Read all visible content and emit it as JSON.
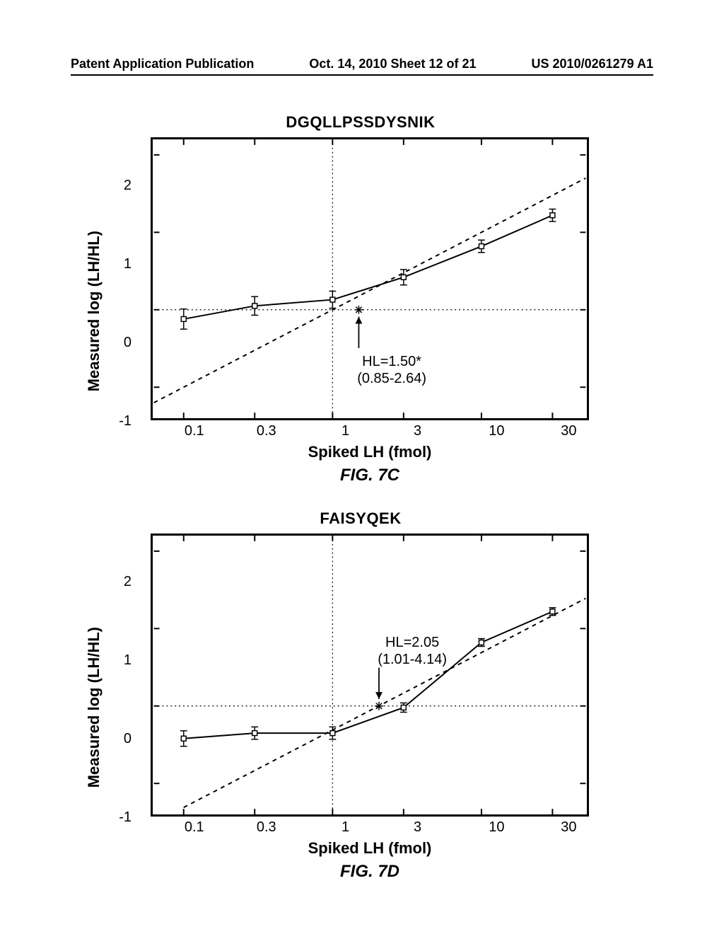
{
  "header": {
    "left": "Patent Application Publication",
    "center": "Oct. 14, 2010  Sheet 12 of 21",
    "right": "US 2010/0261279 A1"
  },
  "chart_c": {
    "title": "DGQLLPSSDYSNIK",
    "ylabel": "Measured log (LH/HL)",
    "xlabel": "Spiked LH (fmol)",
    "fig": "FIG. 7C",
    "ylim": [
      -1.4,
      2.2
    ],
    "yticks": [
      -1,
      0,
      1,
      2
    ],
    "xlim_log": [
      -1.2,
      1.7
    ],
    "xticks": [
      0.1,
      0.3,
      1,
      3,
      10,
      30
    ],
    "xtick_labels": [
      "0.1",
      "0.3",
      "1",
      "3",
      "10",
      "30"
    ],
    "data_x": [
      0.1,
      0.3,
      1,
      3,
      10,
      30
    ],
    "data_y": [
      -0.12,
      0.05,
      0.13,
      0.42,
      0.82,
      1.22
    ],
    "err": [
      0.13,
      0.12,
      0.11,
      0.1,
      0.08,
      0.08
    ],
    "dashed_p1": [
      -1.2,
      -1.2
    ],
    "dashed_p2": [
      1.7,
      1.7
    ],
    "dashed_intercept_logx": 0,
    "star_x": 1.5,
    "star_y": 0,
    "annot_line1": "HL=1.50*",
    "annot_line2": "(0.85-2.64)",
    "hline_y": 0,
    "vline_x": 1,
    "line_color": "#000000",
    "marker_stroke": "#000000",
    "marker_fill": "#ffffff",
    "marker_size": 7,
    "line_width": 2,
    "dash_pattern": "6,6",
    "dot_pattern": "2,4",
    "background": "#ffffff"
  },
  "chart_d": {
    "title": "FAISYQEK",
    "ylabel": "Measured log (LH/HL)",
    "xlabel": "Spiked LH (fmol)",
    "fig": "FIG. 7D",
    "ylim": [
      -1.4,
      2.2
    ],
    "yticks": [
      -1,
      0,
      1,
      2
    ],
    "xlim_log": [
      -1.2,
      1.7
    ],
    "xticks": [
      0.1,
      0.3,
      1,
      3,
      10,
      30
    ],
    "xtick_labels": [
      "0.1",
      "0.3",
      "1",
      "3",
      "10",
      "30"
    ],
    "data_x": [
      0.1,
      0.3,
      1,
      3,
      10,
      30
    ],
    "data_y": [
      -0.42,
      -0.35,
      -0.35,
      -0.02,
      0.82,
      1.22
    ],
    "err": [
      0.1,
      0.08,
      0.08,
      0.06,
      0.05,
      0.05
    ],
    "dashed_p1": [
      -1.0,
      -1.31
    ],
    "dashed_p2": [
      1.7,
      1.39
    ],
    "star_x": 2.05,
    "star_y": 0,
    "annot_line1": "HL=2.05",
    "annot_line2": "(1.01-4.14)",
    "hline_y": 0,
    "vline_x": 1,
    "line_color": "#000000",
    "marker_stroke": "#000000",
    "marker_fill": "#ffffff",
    "marker_size": 7,
    "line_width": 2,
    "dash_pattern": "6,6",
    "dot_pattern": "2,4",
    "background": "#ffffff"
  }
}
